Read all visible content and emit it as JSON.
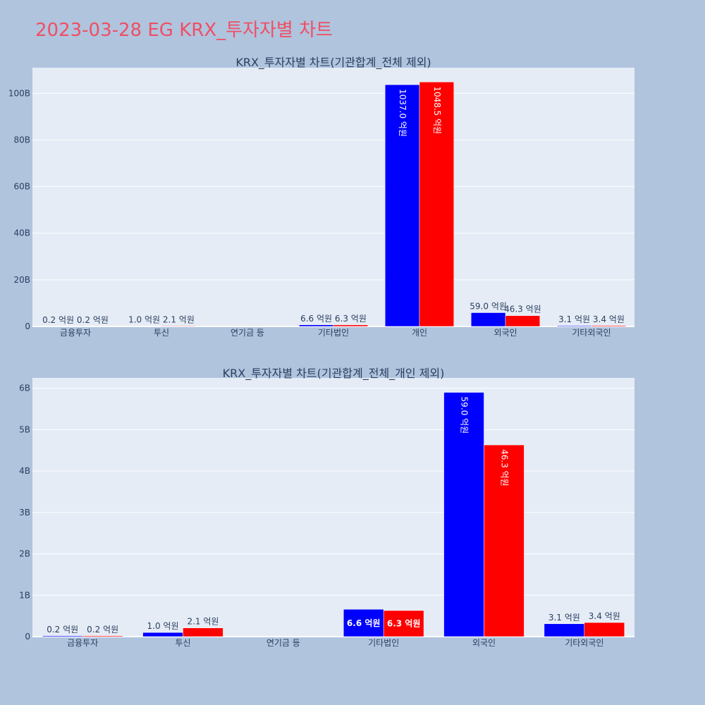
{
  "title": "2023-03-28 EG KRX_투자자별 차트",
  "colors": {
    "page_bg": "#b0c4de",
    "plot_bg": "#e5ecf6",
    "grid": "#ffffff",
    "text": "#2a3f5f",
    "title": "#ef4f64",
    "series_blue": "#0000ff",
    "series_red": "#ff0000"
  },
  "chart_data": [
    {
      "type": "bar",
      "title": "KRX_투자자별 차트(기관합계_전체 제외)",
      "categories": [
        "금융투자",
        "투신",
        "연기금 등",
        "기타법인",
        "개인",
        "외국인",
        "기타외국인"
      ],
      "ylim": [
        0,
        111
      ],
      "yticks": [
        0,
        20,
        40,
        60,
        80,
        100
      ],
      "ytick_labels": [
        "0",
        "20B",
        "40B",
        "60B",
        "80B",
        "100B"
      ],
      "grid": true,
      "series": [
        {
          "color": "#0000ff",
          "values": [
            0.02,
            0.1,
            0,
            0.66,
            103.7,
            5.9,
            0.31
          ],
          "labels": [
            "0.2 억원",
            "1.0 억원",
            "",
            "6.6 억원",
            "1037.0 억원",
            "59.0 억원",
            "3.1 억원"
          ]
        },
        {
          "color": "#ff0000",
          "values": [
            0.02,
            0.21,
            0,
            0.63,
            104.85,
            4.63,
            0.34
          ],
          "labels": [
            "0.2 억원",
            "2.1 억원",
            "",
            "6.3 억원",
            "1048.5 억원",
            "46.3 억원",
            "3.4 억원"
          ]
        }
      ]
    },
    {
      "type": "bar",
      "title": "KRX_투자자별 차트(기관합계_전체_개인 제외)",
      "categories": [
        "금융투자",
        "투신",
        "연기금 등",
        "기타법인",
        "외국인",
        "기타외국인"
      ],
      "ylim": [
        0,
        6.25
      ],
      "yticks": [
        0,
        1,
        2,
        3,
        4,
        5,
        6
      ],
      "ytick_labels": [
        "0",
        "1B",
        "2B",
        "3B",
        "4B",
        "5B",
        "6B"
      ],
      "grid": true,
      "series": [
        {
          "color": "#0000ff",
          "values": [
            0.02,
            0.1,
            0,
            0.66,
            5.9,
            0.31
          ],
          "labels": [
            "0.2 억원",
            "1.0 억원",
            "",
            "6.6 억원",
            "59.0 억원",
            "3.1 억원"
          ]
        },
        {
          "color": "#ff0000",
          "values": [
            0.02,
            0.21,
            0,
            0.63,
            4.63,
            0.34
          ],
          "labels": [
            "0.2 억원",
            "2.1 억원",
            "",
            "6.3 억원",
            "46.3 억원",
            "3.4 억원"
          ]
        }
      ]
    }
  ]
}
